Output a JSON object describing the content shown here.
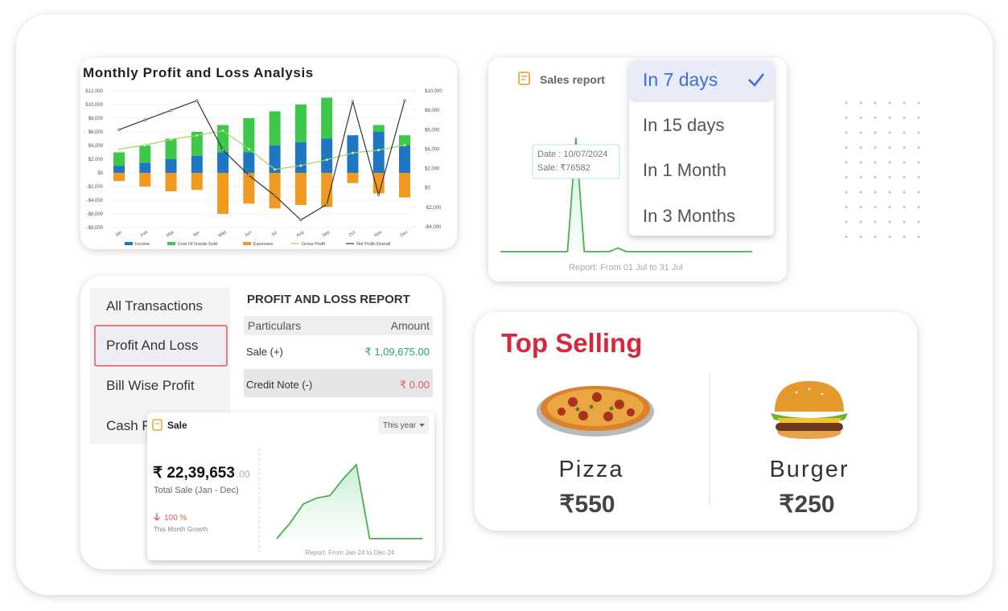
{
  "chart_data": [
    {
      "type": "bar",
      "title": "Monthly Profit and Loss Analysis",
      "stacked": true,
      "categories": [
        "Jan",
        "Feb",
        "Mar",
        "Apr",
        "May",
        "Jun",
        "Jul",
        "Aug",
        "Sep",
        "Oct",
        "Nov",
        "Dec"
      ],
      "series": [
        {
          "name": "Income",
          "color": "#1f77c4",
          "values": [
            1000,
            1500,
            2000,
            2500,
            3000,
            3000,
            4000,
            4500,
            5000,
            5500,
            6000,
            4000
          ]
        },
        {
          "name": "Cost Of Goods Sold",
          "color": "#3cc84a",
          "values": [
            2000,
            2500,
            3000,
            3500,
            4000,
            5000,
            5000,
            5500,
            6000,
            0,
            1000,
            1500
          ]
        },
        {
          "name": "Expenses",
          "color": "#f19a22",
          "values": [
            -1200,
            -2000,
            -2700,
            -2500,
            -6000,
            -4500,
            -5200,
            -4700,
            -5000,
            -1500,
            -3000,
            -3600
          ]
        },
        {
          "name": "Gross Profit",
          "color": "#9ed75a",
          "type": "line",
          "axis": "y2",
          "values": [
            4000,
            4400,
            5000,
            5400,
            5900,
            4000,
            1900,
            2300,
            2900,
            3600,
            3900,
            4400
          ]
        },
        {
          "name": "Net Profit-Overall",
          "color": "#333333",
          "type": "line",
          "axis": "y2",
          "values": [
            6000,
            7000,
            8000,
            9000,
            3900,
            1300,
            -800,
            -3300,
            -1700,
            8900,
            -700,
            9000
          ]
        }
      ],
      "ylim": [
        -8000,
        12000
      ],
      "yticks": [
        {
          "value": 12000,
          "label": "$12,000"
        },
        {
          "value": 10000,
          "label": "$10,000"
        },
        {
          "value": 8000,
          "label": "$8,000"
        },
        {
          "value": 6000,
          "label": "$6,000"
        },
        {
          "value": 4000,
          "label": "$4,000"
        },
        {
          "value": 2000,
          "label": "$2,000"
        },
        {
          "value": 0,
          "label": "$0"
        },
        {
          "value": -2000,
          "label": "-$2,000"
        },
        {
          "value": -4000,
          "label": "-$4,000"
        },
        {
          "value": -6000,
          "label": "-$6,000"
        },
        {
          "value": -8000,
          "label": "-$8,000"
        }
      ],
      "y2lim": [
        -4000,
        10000
      ],
      "y2ticks": [
        {
          "value": 10000,
          "label": "$10,000"
        },
        {
          "value": 8000,
          "label": "$8,000"
        },
        {
          "value": 6000,
          "label": "$6,000"
        },
        {
          "value": 4000,
          "label": "$4,000"
        },
        {
          "value": 2000,
          "label": "$2,000"
        },
        {
          "value": 0,
          "label": "$0"
        },
        {
          "value": -2000,
          "label": "-$2,000"
        },
        {
          "value": -4000,
          "label": "-$4,000"
        }
      ],
      "grid": true,
      "legend": "bottom"
    },
    {
      "type": "line",
      "title": "Sales report",
      "color": "#4caf50",
      "values": [
        0,
        0,
        0,
        0,
        0,
        0,
        0,
        0,
        0,
        76582,
        0,
        0,
        0,
        0,
        2500,
        0,
        0,
        0,
        0,
        0,
        0,
        0,
        0,
        0,
        0,
        0,
        0,
        0,
        0,
        0,
        0
      ],
      "annotations": [
        "Date : 10/07/2024",
        "Sale: ₹76582"
      ],
      "footer": "Report: From 01 Jul to 31 Jul",
      "options": [
        "In 7 days",
        "In 15 days",
        "In 1 Month",
        "In 3 Months"
      ]
    },
    {
      "type": "line",
      "title": "Sale",
      "color": "#4caf50",
      "values": [
        0,
        130000,
        290000,
        340000,
        360000,
        500000,
        619653,
        0,
        0,
        0,
        0,
        0
      ],
      "total": "₹ 22,39,653",
      "total_decimals": ".00",
      "subtitle": "Total Sale (Jan - Dec)",
      "growth": "100 %",
      "growth_label": "This Month Growth",
      "period": "This year",
      "footer": "Report: From Jan-24 to Dec-24"
    }
  ],
  "pl_report": {
    "menu": [
      "All Transactions",
      "Profit And Loss",
      "Bill Wise Profit",
      "Cash Flow"
    ],
    "title": "PROFIT AND LOSS REPORT",
    "headers": [
      "Particulars",
      "Amount"
    ],
    "rows": [
      [
        "Sale (+)",
        "₹ 1,09,675.00"
      ],
      [
        "Credit Note (-)",
        "₹ 0.00"
      ]
    ]
  },
  "top_selling": {
    "title": "Top Selling",
    "items": [
      {
        "name": "Pizza",
        "price": "₹550"
      },
      {
        "name": "Burger",
        "price": "₹250"
      }
    ]
  }
}
